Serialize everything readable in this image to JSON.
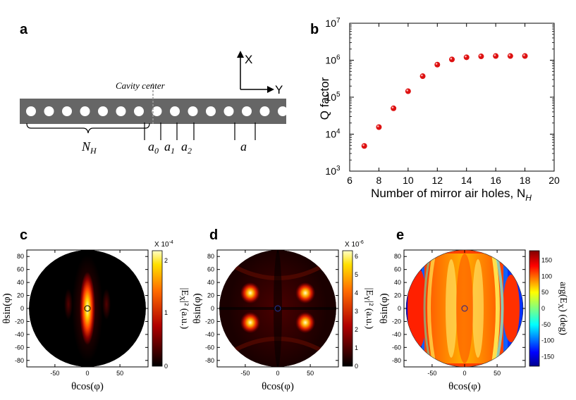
{
  "panels": {
    "a": {
      "label": "a",
      "cavity_label": "Cavity center",
      "axis_x": "X",
      "axis_y": "Y",
      "nh_label": "N",
      "nh_sub": "H",
      "labels": [
        {
          "main": "a",
          "sub": "0"
        },
        {
          "main": "a",
          "sub": "1"
        },
        {
          "main": "a",
          "sub": "2"
        },
        {
          "main": "a",
          "sub": ""
        }
      ],
      "hole_count": 15
    },
    "b": {
      "label": "b"
    },
    "c": {
      "label": "c",
      "cbar_exp": "X 10",
      "cbar_exp_power": "-4",
      "cbar_ticks": [
        "2",
        "1",
        "0"
      ],
      "cbar_title": "|E",
      "cbar_title_sub": "X",
      "cbar_title_rest": "|² (a.u.)"
    },
    "d": {
      "label": "d",
      "cbar_exp": "X 10",
      "cbar_exp_power": "-6",
      "cbar_ticks": [
        "6",
        "5",
        "4",
        "3",
        "2",
        "1",
        "0"
      ],
      "cbar_title": "|E",
      "cbar_title_sub": "Y",
      "cbar_title_rest": "|² (a.u.)"
    },
    "e": {
      "label": "e",
      "cbar_ticks": [
        "150",
        "100",
        "50",
        "0",
        "-50",
        "-100",
        "-150"
      ],
      "cbar_title": "arg(E",
      "cbar_title_sub": "X",
      "cbar_title_rest": ")  (deg)"
    }
  },
  "far_field_axes": {
    "xlabel": "θcos(φ)",
    "ylabel": "θsin(φ)",
    "yticks": [
      "80",
      "60",
      "40",
      "20",
      "0",
      "-20",
      "-40",
      "-60",
      "-80"
    ],
    "xticks": [
      "-50",
      "0",
      "50"
    ]
  },
  "colors": {
    "hole_slab": "#666666",
    "hot_dark": "#000000",
    "marker": "#dd1111"
  },
  "chart_data": [
    {
      "type": "scatter",
      "panel": "b",
      "x": [
        7,
        8,
        9,
        10,
        11,
        12,
        13,
        14,
        15,
        16,
        17,
        18
      ],
      "y": [
        4800.0,
        15500.0,
        50000.0,
        145000.0,
        370000.0,
        760000.0,
        1050000.0,
        1200000.0,
        1270000.0,
        1300000.0,
        1300000.0,
        1300000.0
      ],
      "xlabel": "Number of mirror air holes, N",
      "xlabel_sub": "H",
      "ylabel": "Q factor",
      "xlim": [
        6,
        20
      ],
      "ylim": [
        1000,
        10000000
      ],
      "yscale": "log",
      "xticks": [
        6,
        8,
        10,
        12,
        14,
        16,
        18,
        20
      ],
      "ytick_labels": [
        {
          "base": "10",
          "exp": "3"
        },
        {
          "base": "10",
          "exp": "4"
        },
        {
          "base": "10",
          "exp": "5"
        },
        {
          "base": "10",
          "exp": "6"
        },
        {
          "base": "10",
          "exp": "7"
        }
      ]
    },
    {
      "type": "heatmap",
      "panel": "c",
      "xlabel": "θcos(φ)",
      "ylabel": "θsin(φ)",
      "xlim": [
        -90,
        90
      ],
      "ylim": [
        -90,
        90
      ],
      "colorbar_range": [
        0,
        2.2
      ],
      "colorbar_label": "|E_X|^2 (a.u.)"
    },
    {
      "type": "heatmap",
      "panel": "d",
      "xlabel": "θcos(φ)",
      "ylabel": "θsin(φ)",
      "xlim": [
        -90,
        90
      ],
      "ylim": [
        -90,
        90
      ],
      "colorbar_range": [
        0,
        6.3
      ],
      "colorbar_label": "|E_Y|^2 (a.u.)"
    },
    {
      "type": "heatmap",
      "panel": "e",
      "xlabel": "θcos(φ)",
      "ylabel": "θsin(φ)",
      "xlim": [
        -90,
        90
      ],
      "ylim": [
        -90,
        90
      ],
      "colorbar_range": [
        -180,
        180
      ],
      "colorbar_label": "arg(E_X) (deg)"
    }
  ]
}
